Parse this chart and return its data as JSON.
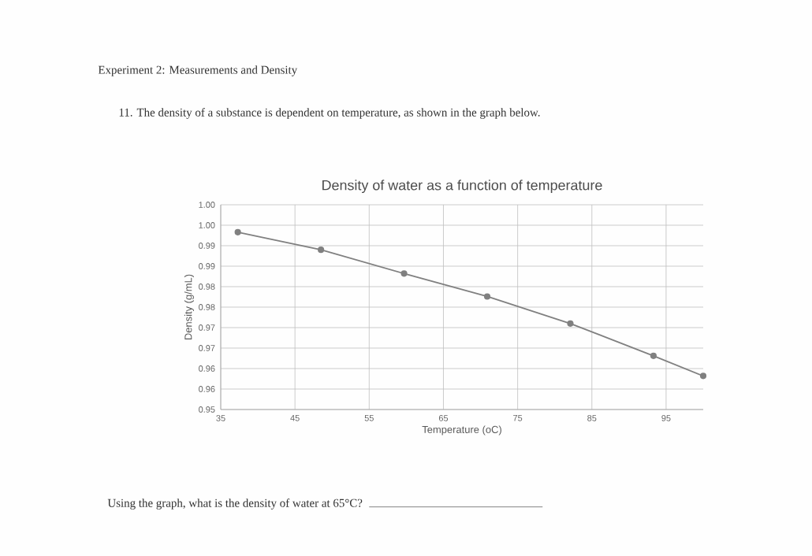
{
  "chart_data": {
    "type": "line",
    "title": "Density of water as a function of temperature",
    "xlabel": "Temperature (oC)",
    "ylabel": "Density (g/mL)",
    "annotations": [
      "Experiment 2:  Measurements and Density",
      "11. The density of a substance is dependent on temperature, as shown in the graph below.",
      "Using the graph, what is the density of water at 65°C?"
    ],
    "x": [
      37.3,
      48.5,
      59.7,
      70.9,
      82.1,
      93.3,
      100
    ],
    "series": [
      {
        "color": "#808080",
        "values": [
          0.9933,
          0.989,
          0.9832,
          0.9776,
          0.971,
          0.9631,
          0.9582
        ]
      }
    ],
    "xlim": [
      35,
      100
    ],
    "xticks": [
      35,
      45,
      55,
      65,
      75,
      85,
      95
    ],
    "ylim": [
      0.95,
      1.0
    ],
    "yticks": [
      {
        "value": 0.95,
        "label": "0.95"
      },
      {
        "value": 0.955,
        "label": "0.96"
      },
      {
        "value": 0.96,
        "label": "0.96"
      },
      {
        "value": 0.965,
        "label": "0.97"
      },
      {
        "value": 0.97,
        "label": "0.97"
      },
      {
        "value": 0.975,
        "label": "0.98"
      },
      {
        "value": 0.98,
        "label": "0.98"
      },
      {
        "value": 0.985,
        "label": "0.99"
      },
      {
        "value": 0.99,
        "label": "0.99"
      },
      {
        "value": 0.995,
        "label": "1.00"
      },
      {
        "value": 1.0,
        "label": "1.00"
      }
    ],
    "grid": true,
    "marker": "circle",
    "line_style": "solid",
    "legend": false
  }
}
